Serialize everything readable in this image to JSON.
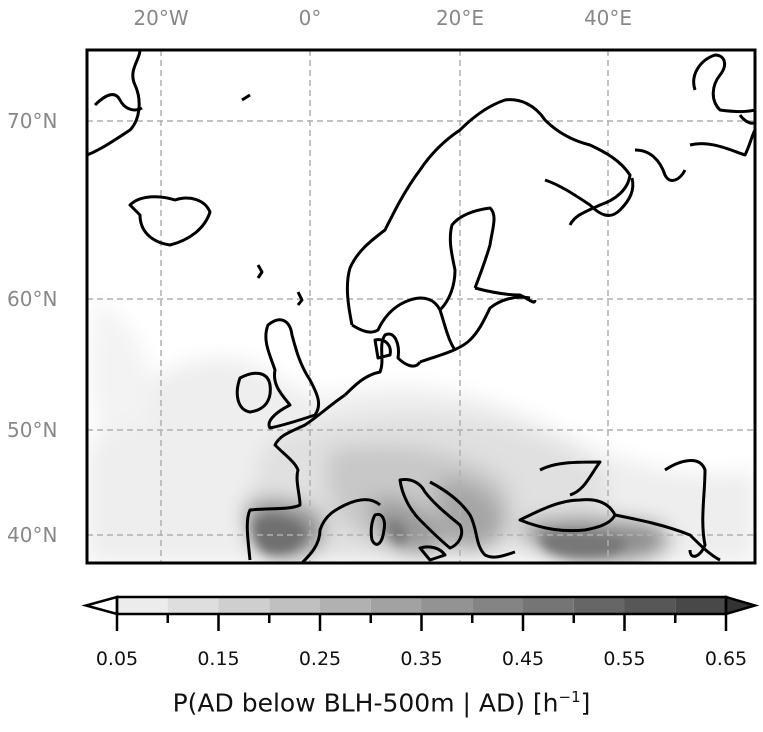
{
  "axes": {
    "lon_labels": [
      "20°W",
      "0°",
      "20°E",
      "40°E"
    ],
    "lat_labels": [
      "70°N",
      "60°N",
      "50°N",
      "40°N"
    ],
    "gridline_style": "dashed",
    "gridline_color": "#b0b0b0"
  },
  "map": {
    "region": "Europe",
    "coastline_color": "#000000",
    "field_colormap": "greys",
    "field_description_levels": "low probability in light grey, highest over Iberia, southern Italy, Balkans and Turkey"
  },
  "colorbar": {
    "title_main": "P(AD below BLH-500m | AD) [h",
    "title_exp": "−1",
    "title_end": "]",
    "tick_labels": [
      "0.05",
      "0.15",
      "0.25",
      "0.35",
      "0.45",
      "0.55",
      "0.65"
    ],
    "levels": [
      0.05,
      0.1,
      0.15,
      0.2,
      0.25,
      0.3,
      0.35,
      0.4,
      0.45,
      0.5,
      0.55,
      0.6,
      0.65
    ],
    "colors": [
      "#ececec",
      "#dedede",
      "#cfcfcf",
      "#c0c0c0",
      "#b1b1b1",
      "#a2a2a2",
      "#939393",
      "#848484",
      "#757575",
      "#666666",
      "#575757",
      "#484848"
    ],
    "extend": "both"
  }
}
